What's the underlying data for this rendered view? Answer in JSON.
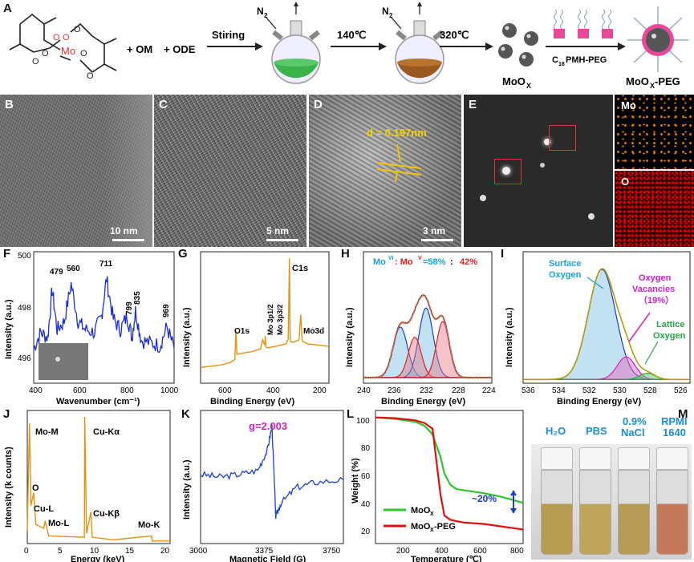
{
  "panel_letters": [
    "A",
    "B",
    "C",
    "D",
    "E",
    "F",
    "G",
    "H",
    "I",
    "J",
    "K",
    "L",
    "M"
  ],
  "scheme": {
    "mo_label": "Mo",
    "plus_om": "+ OM",
    "plus_ode": "+ ODE",
    "stirring": "Stiring",
    "n2": "N",
    "n2_sub": "2",
    "step_140": "140℃",
    "step_320": "320℃",
    "moox": "MoO",
    "moox_sub": "X",
    "peg_reagent": "C",
    "peg_reagent_sub": "18",
    "peg_reagent_rest": "PMH-PEG",
    "moox_peg": "MoO",
    "moox_peg_sub": "X",
    "moox_peg_rest": "-PEG"
  },
  "tem": {
    "scale_b": "10 nm",
    "scale_c": "5 nm",
    "scale_d": "3 nm",
    "d_spacing": "d = 0.197nm",
    "map_mo": "Mo",
    "map_o": "O"
  },
  "panel_f": {
    "ylabel": "Intensity (a.u.)",
    "xlabel": "Wavenumber (cm⁻¹)",
    "yticks": [
      "500",
      "498",
      "496"
    ],
    "xticks": [
      "400",
      "600",
      "800",
      "1000"
    ],
    "peaks": [
      "479",
      "560",
      "711",
      "799",
      "835",
      "969"
    ]
  },
  "panel_g": {
    "ylabel": "Intensity (a.u.)",
    "xlabel": "Binding Energy (eV)",
    "xticks": [
      "600",
      "400",
      "200"
    ],
    "peaks": [
      "C1s",
      "O1s",
      "Mo 3p1/2",
      "Mo 3p3/2",
      "Mo3d"
    ]
  },
  "panel_h": {
    "ylabel": "Intensity (a.u.)",
    "xlabel": "Binding Energy (eV)",
    "xticks": [
      "240",
      "236",
      "232",
      "228",
      "224"
    ],
    "ratio_a": "Mo",
    "ratio_a_sup": "VI",
    "ratio_sep": ": Mo",
    "ratio_b_sup": "V",
    "ratio_val_a": "=58%",
    "ratio_colon": " : ",
    "ratio_val_b": "42%"
  },
  "panel_i": {
    "ylabel": "Intensity (a.u.)",
    "xlabel": "Binding Energy (eV)",
    "xticks": [
      "536",
      "534",
      "532",
      "530",
      "528",
      "526"
    ],
    "surface": "Surface",
    "surface2": "Oxygen",
    "vac1": "Oxygen",
    "vac2": "Vacancies",
    "vac3": "（19%）",
    "lattice1": "Lattice",
    "lattice2": "Oxygen"
  },
  "panel_j": {
    "ylabel": "Intensity (k counts)",
    "xlabel": "Energy (keV)",
    "xticks": [
      "0",
      "5",
      "10",
      "15",
      "20"
    ],
    "peaks": [
      "Mo-M",
      "Cu-Kα",
      "O",
      "Cu-L",
      "Cu-Kβ",
      "Mo-L",
      "Mo-K"
    ]
  },
  "panel_k": {
    "ylabel": "Intensity (a.u.)",
    "xlabel": "Magnetic Field (G)",
    "xticks": [
      "3000",
      "3375",
      "3750"
    ],
    "g": "g=2.003"
  },
  "panel_l": {
    "ylabel": "Weight (%)",
    "xlabel": "Temperature (℃)",
    "yticks": [
      "100",
      "80",
      "60",
      "40",
      "20"
    ],
    "xticks": [
      "200",
      "400",
      "600",
      "800"
    ],
    "legend_a": "MoO",
    "legend_a_sub": "X",
    "legend_b": "MoO",
    "legend_b_sub": "X",
    "legend_b_rest": "-PEG",
    "delta": "~20%"
  },
  "panel_m": {
    "labels": [
      "H₂O",
      "PBS",
      "0.9%",
      "NaCl",
      "RPMI",
      "1640"
    ]
  },
  "chart_data": [
    {
      "type": "line",
      "panel": "F",
      "title": "",
      "xlabel": "Wavenumber (cm⁻¹)",
      "ylabel": "Intensity (a.u.)",
      "xlim": [
        400,
        1000
      ],
      "ylim": [
        495.3,
        500.2
      ],
      "x": [
        400,
        430,
        460,
        479,
        500,
        530,
        560,
        590,
        620,
        660,
        690,
        711,
        740,
        770,
        799,
        820,
        835,
        860,
        900,
        940,
        969,
        1000
      ],
      "y": [
        496.6,
        497.2,
        497.0,
        498.8,
        497.3,
        497.6,
        499.0,
        497.6,
        497.3,
        497.2,
        497.8,
        499.2,
        497.7,
        497.3,
        497.8,
        497.0,
        498.0,
        496.9,
        496.8,
        496.7,
        497.4,
        496.6
      ]
    },
    {
      "type": "line",
      "panel": "G",
      "title": "",
      "xlabel": "Binding Energy (eV)",
      "xlim": [
        700,
        100
      ],
      "x": [
        700,
        650,
        600,
        560,
        540,
        535,
        530,
        500,
        460,
        420,
        410,
        400,
        398,
        395,
        390,
        380,
        350,
        300,
        290,
        285,
        282,
        280,
        270,
        240,
        232,
        228,
        225,
        200,
        150,
        100
      ],
      "y": [
        0.12,
        0.13,
        0.14,
        0.16,
        0.18,
        0.4,
        0.22,
        0.23,
        0.24,
        0.26,
        0.33,
        0.29,
        0.36,
        0.28,
        0.27,
        0.27,
        0.28,
        0.3,
        0.34,
        0.95,
        0.4,
        0.32,
        0.31,
        0.33,
        0.52,
        0.4,
        0.32,
        0.3,
        0.29,
        0.28
      ]
    },
    {
      "type": "line",
      "panel": "H",
      "title": "",
      "xlabel": "Binding Energy (eV)",
      "xlim": [
        240,
        224
      ],
      "series": [
        {
          "name": "envelope",
          "x": [
            240,
            238,
            236,
            235.2,
            234,
            233,
            232.1,
            231,
            230,
            229.3,
            228,
            226,
            224
          ],
          "y": [
            0.08,
            0.15,
            0.45,
            0.58,
            0.55,
            0.66,
            0.82,
            0.58,
            0.56,
            0.52,
            0.2,
            0.06,
            0.05
          ]
        }
      ]
    },
    {
      "type": "line",
      "panel": "I",
      "title": "",
      "xlabel": "Binding Energy (eV)",
      "xlim": [
        537,
        526
      ],
      "series": [
        {
          "name": "fit",
          "x": [
            537,
            535,
            534,
            533,
            532,
            531.8,
            531,
            530.2,
            529.5,
            528.7,
            527,
            526
          ],
          "y": [
            0.05,
            0.08,
            0.25,
            0.6,
            0.92,
            0.95,
            0.75,
            0.28,
            0.18,
            0.08,
            0.04,
            0.03
          ]
        }
      ]
    },
    {
      "type": "line",
      "panel": "J",
      "title": "",
      "xlabel": "Energy (keV)",
      "ylabel": "Intensity (k counts)",
      "xlim": [
        0,
        20
      ],
      "x": [
        0,
        0.3,
        0.5,
        0.9,
        1.2,
        2.3,
        2.5,
        3,
        8,
        8.05,
        8.3,
        8.9,
        9.1,
        12,
        17.4,
        17.5,
        20
      ],
      "y": [
        0.1,
        0.95,
        0.3,
        0.4,
        0.15,
        0.12,
        0.18,
        0.06,
        0.05,
        1.0,
        0.08,
        0.25,
        0.05,
        0.03,
        0.06,
        0.02,
        0.02
      ]
    },
    {
      "type": "line",
      "panel": "K",
      "title": "",
      "xlabel": "Magnetic Field (G)",
      "ylabel": "Intensity (a.u.)",
      "xlim": [
        3000,
        3750
      ],
      "x": [
        3000,
        3100,
        3200,
        3300,
        3350,
        3375,
        3395,
        3420,
        3500,
        3600,
        3750
      ],
      "y": [
        0.52,
        0.5,
        0.52,
        0.55,
        0.7,
        0.88,
        0.2,
        0.3,
        0.42,
        0.46,
        0.48
      ]
    },
    {
      "type": "line",
      "panel": "L",
      "title": "",
      "xlabel": "Temperature (℃)",
      "ylabel": "Weight (%)",
      "xlim": [
        50,
        800
      ],
      "ylim": [
        10,
        105
      ],
      "x": [
        50,
        150,
        250,
        300,
        340,
        380,
        400,
        430,
        460,
        500,
        600,
        700,
        800
      ],
      "series": [
        {
          "name": "MoOX",
          "values": [
            100,
            99,
            97,
            94,
            88,
            72,
            60,
            52,
            49,
            48,
            46,
            43,
            39
          ]
        },
        {
          "name": "MoOX-PEG",
          "values": [
            100,
            99.5,
            98,
            96,
            92,
            45,
            30,
            27,
            26,
            25,
            24,
            22,
            20
          ]
        }
      ]
    }
  ]
}
